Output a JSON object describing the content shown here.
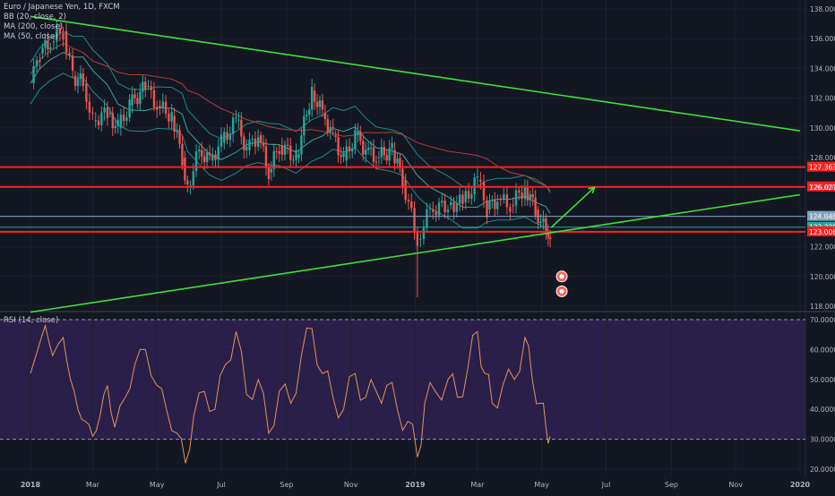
{
  "header": {
    "symbol_title": "Euro / Japanese Yen, 1D, FXCM",
    "indicators": [
      "BB (20, close, 2)",
      "MA (200, close)",
      "MA (50, close)"
    ]
  },
  "rsi_panel": {
    "title": "RSI (14, close)",
    "upper_band": 70,
    "lower_band": 30,
    "y_ticks": [
      "70.0000",
      "60.0000",
      "50.0000",
      "40.0000",
      "30.0000",
      "20.0000"
    ]
  },
  "colors": {
    "background": "#131722",
    "up_candle": "#26a69a",
    "down_candle": "#ef5350",
    "support_resistance": "#ff1f1f",
    "trendline": "#3ee03e",
    "bollinger": "#1f8a8a",
    "ma200": "#b2403f",
    "rsi_line": "#e0955a",
    "rsi_band_fill": "#2a1f4a",
    "horizontal_line_blue": "#7ea3c0"
  },
  "icons": [
    "arrow-up-right-icon",
    "event-flag-icon"
  ],
  "chart_data": [
    {
      "type": "line",
      "title": "Euro / Japanese Yen, 1D, FXCM",
      "x_tick_labels": [
        "2018",
        "Mar",
        "May",
        "Jul",
        "Sep",
        "Nov",
        "2019",
        "Mar",
        "May",
        "Jul",
        "Sep",
        "Nov",
        "2020"
      ],
      "y_tick_labels": [
        "138.000",
        "136.000",
        "134.000",
        "132.000",
        "130.000",
        "128.000",
        "126.000",
        "124.000",
        "122.000",
        "120.000",
        "118.000"
      ],
      "ylim": [
        117.8,
        138.2
      ],
      "horizontal_levels": [
        {
          "value": 127.363,
          "label": "127.363",
          "color": "#ff1f1f"
        },
        {
          "value": 126.027,
          "label": "126.027",
          "color": "#ff1f1f"
        },
        {
          "value": 124.048,
          "label": "124.048",
          "color": "#7ea3c0"
        },
        {
          "value": 123.32,
          "label": "123.320",
          "color": "#26a69a"
        },
        {
          "value": 123.006,
          "label": "123.006",
          "color": "#ff1f1f"
        }
      ],
      "trendlines": [
        {
          "name": "upper",
          "from": [
            "2018-01",
            137.5
          ],
          "to": [
            "2020-01",
            129.8
          ]
        },
        {
          "name": "lower",
          "from": [
            "2018-01",
            117.6
          ],
          "to": [
            "2020-01",
            125.5
          ]
        }
      ],
      "price_path": [
        [
          "2018-01-01",
          133.0
        ],
        [
          "2018-01-10",
          135.0
        ],
        [
          "2018-01-20",
          135.8
        ],
        [
          "2018-02-01",
          136.5
        ],
        [
          "2018-02-10",
          133.5
        ],
        [
          "2018-02-20",
          133.0
        ],
        [
          "2018-03-01",
          130.5
        ],
        [
          "2018-03-15",
          131.0
        ],
        [
          "2018-03-25",
          130.0
        ],
        [
          "2018-04-05",
          131.5
        ],
        [
          "2018-04-20",
          132.8
        ],
        [
          "2018-05-01",
          131.5
        ],
        [
          "2018-05-15",
          130.8
        ],
        [
          "2018-05-25",
          128.0
        ],
        [
          "2018-05-30",
          126.0
        ],
        [
          "2018-06-10",
          128.5
        ],
        [
          "2018-06-20",
          127.8
        ],
        [
          "2018-07-01",
          129.0
        ],
        [
          "2018-07-15",
          130.5
        ],
        [
          "2018-07-25",
          128.5
        ],
        [
          "2018-08-05",
          129.5
        ],
        [
          "2018-08-15",
          127.0
        ],
        [
          "2018-08-25",
          128.8
        ],
        [
          "2018-09-10",
          128.0
        ],
        [
          "2018-09-25",
          132.5
        ],
        [
          "2018-10-05",
          131.0
        ],
        [
          "2018-10-15",
          129.5
        ],
        [
          "2018-10-25",
          127.8
        ],
        [
          "2018-11-05",
          129.5
        ],
        [
          "2018-11-15",
          128.5
        ],
        [
          "2018-11-25",
          128.0
        ],
        [
          "2018-12-10",
          128.5
        ],
        [
          "2018-12-20",
          126.5
        ],
        [
          "2019-01-03",
          122.5
        ],
        [
          "2019-01-15",
          124.5
        ],
        [
          "2019-02-01",
          124.8
        ],
        [
          "2019-02-15",
          125.0
        ],
        [
          "2019-03-01",
          126.5
        ],
        [
          "2019-03-10",
          124.5
        ],
        [
          "2019-03-20",
          125.2
        ],
        [
          "2019-04-01",
          124.8
        ],
        [
          "2019-04-15",
          126.0
        ],
        [
          "2019-04-25",
          124.5
        ],
        [
          "2019-05-05",
          123.0
        ],
        [
          "2019-05-09",
          122.9
        ]
      ],
      "projection": {
        "from": [
          "2019-05-10",
          123.3
        ],
        "to": [
          "2019-06-20",
          126.0
        ]
      }
    },
    {
      "type": "line",
      "title": "RSI (14, close)",
      "ylim": [
        18,
        72
      ],
      "y_tick_labels": [
        "70.0000",
        "60.0000",
        "50.0000",
        "40.0000",
        "30.0000",
        "20.0000"
      ],
      "series": [
        {
          "values": [
            [
              "2018-01-01",
              52
            ],
            [
              "2018-01-08",
              60
            ],
            [
              "2018-01-15",
              68
            ],
            [
              "2018-01-22",
              58
            ],
            [
              "2018-02-01",
              64
            ],
            [
              "2018-02-08",
              50
            ],
            [
              "2018-02-15",
              40
            ],
            [
              "2018-02-22",
              36
            ],
            [
              "2018-03-01",
              31
            ],
            [
              "2018-03-08",
              38
            ],
            [
              "2018-03-15",
              48
            ],
            [
              "2018-03-22",
              34
            ],
            [
              "2018-04-01",
              44
            ],
            [
              "2018-04-10",
              55
            ],
            [
              "2018-04-20",
              60
            ],
            [
              "2018-05-01",
              48
            ],
            [
              "2018-05-10",
              40
            ],
            [
              "2018-05-20",
              32
            ],
            [
              "2018-05-28",
              22
            ],
            [
              "2018-06-05",
              38
            ],
            [
              "2018-06-15",
              46
            ],
            [
              "2018-06-25",
              40
            ],
            [
              "2018-07-05",
              55
            ],
            [
              "2018-07-15",
              66
            ],
            [
              "2018-07-25",
              45
            ],
            [
              "2018-08-05",
              50
            ],
            [
              "2018-08-15",
              32
            ],
            [
              "2018-08-25",
              46
            ],
            [
              "2018-09-05",
              42
            ],
            [
              "2018-09-15",
              58
            ],
            [
              "2018-09-25",
              67
            ],
            [
              "2018-10-05",
              52
            ],
            [
              "2018-10-15",
              44
            ],
            [
              "2018-10-25",
              40
            ],
            [
              "2018-11-05",
              52
            ],
            [
              "2018-11-15",
              44
            ],
            [
              "2018-11-25",
              46
            ],
            [
              "2018-12-05",
              48
            ],
            [
              "2018-12-15",
              40
            ],
            [
              "2018-12-25",
              36
            ],
            [
              "2019-01-03",
              24
            ],
            [
              "2019-01-10",
              42
            ],
            [
              "2019-01-20",
              46
            ],
            [
              "2019-02-01",
              50
            ],
            [
              "2019-02-10",
              44
            ],
            [
              "2019-02-20",
              54
            ],
            [
              "2019-03-01",
              66
            ],
            [
              "2019-03-08",
              52
            ],
            [
              "2019-03-15",
              42
            ],
            [
              "2019-03-25",
              48
            ],
            [
              "2019-04-05",
              50
            ],
            [
              "2019-04-15",
              64
            ],
            [
              "2019-04-22",
              50
            ],
            [
              "2019-04-30",
              42
            ],
            [
              "2019-05-05",
              34
            ],
            [
              "2019-05-09",
              31
            ]
          ]
        }
      ]
    }
  ]
}
